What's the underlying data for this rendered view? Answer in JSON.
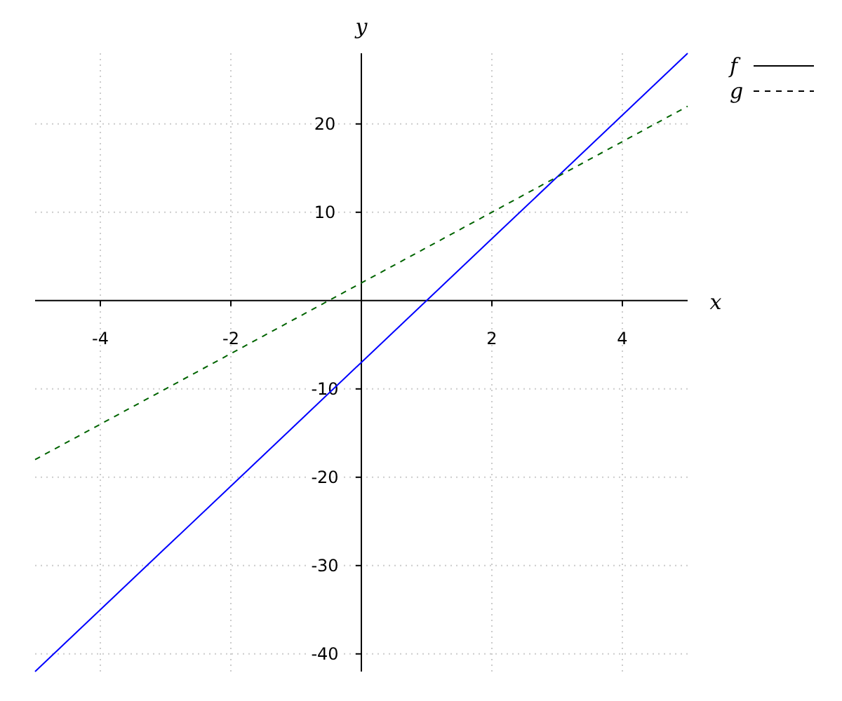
{
  "chart_data": {
    "type": "line",
    "xlabel": "x",
    "ylabel": "y",
    "xlim": [
      -5,
      5
    ],
    "ylim": [
      -42,
      28
    ],
    "xticks": [
      -4,
      -2,
      2,
      4
    ],
    "yticks": [
      -40,
      -30,
      -20,
      -10,
      10,
      20
    ],
    "grid": true,
    "legend": "top right",
    "marker": "none",
    "series": [
      {
        "name": "f",
        "color": "#0000ff",
        "x": [
          -5,
          -4,
          -3,
          -2,
          -1,
          0,
          1,
          2,
          3,
          4,
          5
        ],
        "values": [
          -42,
          -35,
          -28,
          -21,
          -14,
          -7,
          0,
          7,
          14,
          21,
          28
        ],
        "line_style": "solid"
      },
      {
        "name": "g",
        "color": "#006400",
        "x": [
          -5,
          -4,
          -3,
          -2,
          -1,
          0,
          1,
          2,
          3,
          4,
          5
        ],
        "values": [
          -18,
          -14,
          -10,
          -6,
          -2,
          2,
          6,
          10,
          14,
          18,
          22
        ],
        "line_style": "dashed"
      }
    ]
  }
}
